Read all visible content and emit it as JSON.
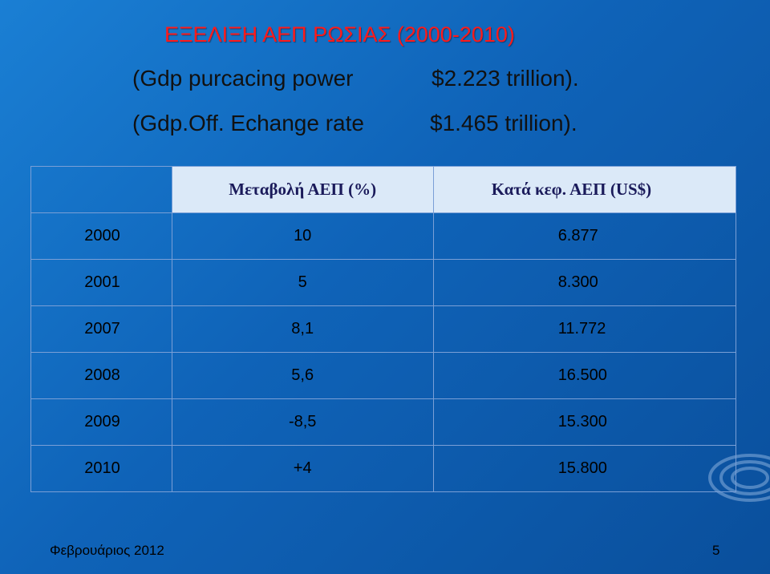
{
  "slide": {
    "title": "ΕΞΕΛΙΞΗ ΑΕΠ ΡΩΣΙΑΣ (2000-2010)",
    "line1_label": "(Gdp purcacing power",
    "line1_value": "$2.223 trillion).",
    "line2_label": "(Gdp.Off. Echange rate",
    "line2_value": "$1.465 trillion)."
  },
  "table": {
    "headers": [
      "",
      "Μεταβολή ΑΕΠ (%)",
      "Κατά κεφ. ΑΕΠ (US$)"
    ],
    "rows": [
      {
        "year": "2000",
        "change": "10",
        "per_capita": "6.877"
      },
      {
        "year": "2001",
        "change": "5",
        "per_capita": "8.300"
      },
      {
        "year": "2007",
        "change": "8,1",
        "per_capita": "11.772"
      },
      {
        "year": "2008",
        "change": "5,6",
        "per_capita": "16.500"
      },
      {
        "year": "2009",
        "change": "-8,5",
        "per_capita": "15.300"
      },
      {
        "year": "2010",
        "change": "+4",
        "per_capita": "15.800"
      }
    ]
  },
  "footer": {
    "date": "Φεβρουάριος 2012",
    "page_number": "5"
  },
  "colors": {
    "title": "#ff1a1a",
    "background": "#0f63b8",
    "header_fill": "#dbe9f8"
  }
}
